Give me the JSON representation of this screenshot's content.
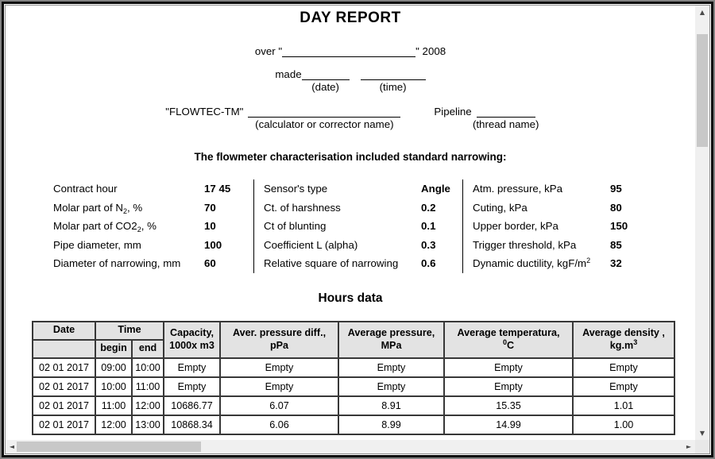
{
  "report": {
    "title": "DAY REPORT",
    "over_prefix": "over \"",
    "over_suffix": "\" 2008",
    "made_label": "made",
    "date_caption": "(date)",
    "time_caption": "(time)",
    "flowtec_label": "\"FLOWTEC-TM\"",
    "calculator_caption": "(calculator or corrector name)",
    "pipeline_label": "Pipeline",
    "thread_caption": "(thread name)",
    "section_heading": "The flowmeter characterisation included standard narrowing:"
  },
  "parameters": {
    "col1": [
      {
        "label": [
          {
            "t": "text",
            "v": "Contract hour"
          }
        ],
        "value": "17 45"
      },
      {
        "label": [
          {
            "t": "text",
            "v": "Molar part of N"
          },
          {
            "t": "sub",
            "v": "2"
          },
          {
            "t": "text",
            "v": ", %"
          }
        ],
        "value": "70"
      },
      {
        "label": [
          {
            "t": "text",
            "v": "Molar part of CO2"
          },
          {
            "t": "sub",
            "v": "2"
          },
          {
            "t": "text",
            "v": ", %"
          }
        ],
        "value": "10"
      },
      {
        "label": [
          {
            "t": "text",
            "v": "Pipe diameter, mm"
          }
        ],
        "value": "100"
      },
      {
        "label": [
          {
            "t": "text",
            "v": "Diameter of narrowing, mm"
          }
        ],
        "value": "60"
      }
    ],
    "col2": [
      {
        "label": [
          {
            "t": "text",
            "v": "Sensor's type"
          }
        ],
        "value": "Angle"
      },
      {
        "label": [
          {
            "t": "text",
            "v": "Ct. of harshness"
          }
        ],
        "value": "0.2"
      },
      {
        "label": [
          {
            "t": "text",
            "v": "Ct of blunting"
          }
        ],
        "value": "0.1"
      },
      {
        "label": [
          {
            "t": "text",
            "v": "Coefficient L (alpha)"
          }
        ],
        "value": "0.3"
      },
      {
        "label": [
          {
            "t": "text",
            "v": "Relative square of narrowing"
          }
        ],
        "value": "0.6"
      }
    ],
    "col3": [
      {
        "label": [
          {
            "t": "text",
            "v": "Atm. pressure, kPa"
          }
        ],
        "value": "95"
      },
      {
        "label": [
          {
            "t": "text",
            "v": "Cuting, kPa"
          }
        ],
        "value": "80"
      },
      {
        "label": [
          {
            "t": "text",
            "v": "Upper border, kPa"
          }
        ],
        "value": "150"
      },
      {
        "label": [
          {
            "t": "text",
            "v": "Trigger threshold, kPa"
          }
        ],
        "value": "85"
      },
      {
        "label": [
          {
            "t": "text",
            "v": "Dynamic ductility, kgF/m"
          },
          {
            "t": "sup",
            "v": "2"
          }
        ],
        "value": "32"
      }
    ]
  },
  "hours": {
    "heading": "Hours data",
    "headers": {
      "date": "Date",
      "time": "Time",
      "begin": "begin",
      "end": "end",
      "capacity": [
        {
          "t": "text",
          "v": "Capacity,"
        },
        {
          "t": "br"
        },
        {
          "t": "text",
          "v": "1000x m3"
        }
      ],
      "press_diff": [
        {
          "t": "text",
          "v": "Aver. pressure diff.,"
        },
        {
          "t": "br"
        },
        {
          "t": "text",
          "v": "pPa"
        }
      ],
      "pressure": [
        {
          "t": "text",
          "v": "Average pressure,"
        },
        {
          "t": "br"
        },
        {
          "t": "text",
          "v": "MPa"
        }
      ],
      "temperature": [
        {
          "t": "text",
          "v": "Average temperatura,"
        },
        {
          "t": "br"
        },
        {
          "t": "sup",
          "v": "0"
        },
        {
          "t": "text",
          "v": "C"
        }
      ],
      "density": [
        {
          "t": "text",
          "v": "Average density ,"
        },
        {
          "t": "br"
        },
        {
          "t": "text",
          "v": "kg.m"
        },
        {
          "t": "sup",
          "v": "3"
        }
      ]
    },
    "rows": [
      [
        "02 01 2017",
        "09:00",
        "10:00",
        "Empty",
        "Empty",
        "Empty",
        "Empty",
        "Empty"
      ],
      [
        "02 01 2017",
        "10:00",
        "11:00",
        "Empty",
        "Empty",
        "Empty",
        "Empty",
        "Empty"
      ],
      [
        "02 01 2017",
        "11:00",
        "12:00",
        "10686.77",
        "6.07",
        "8.91",
        "15.35",
        "1.01"
      ],
      [
        "02 01 2017",
        "12:00",
        "13:00",
        "10868.34",
        "6.06",
        "8.99",
        "14.99",
        "1.00"
      ]
    ]
  },
  "icons": {
    "scroll_up": "▲",
    "scroll_down": "▼",
    "scroll_left": "◄",
    "scroll_right": "►"
  },
  "colors": {
    "header_bg": "#e3e3e3",
    "table_border": "#383838",
    "scroll_track": "#f0f0f0",
    "scroll_thumb": "#c8c8c8"
  }
}
